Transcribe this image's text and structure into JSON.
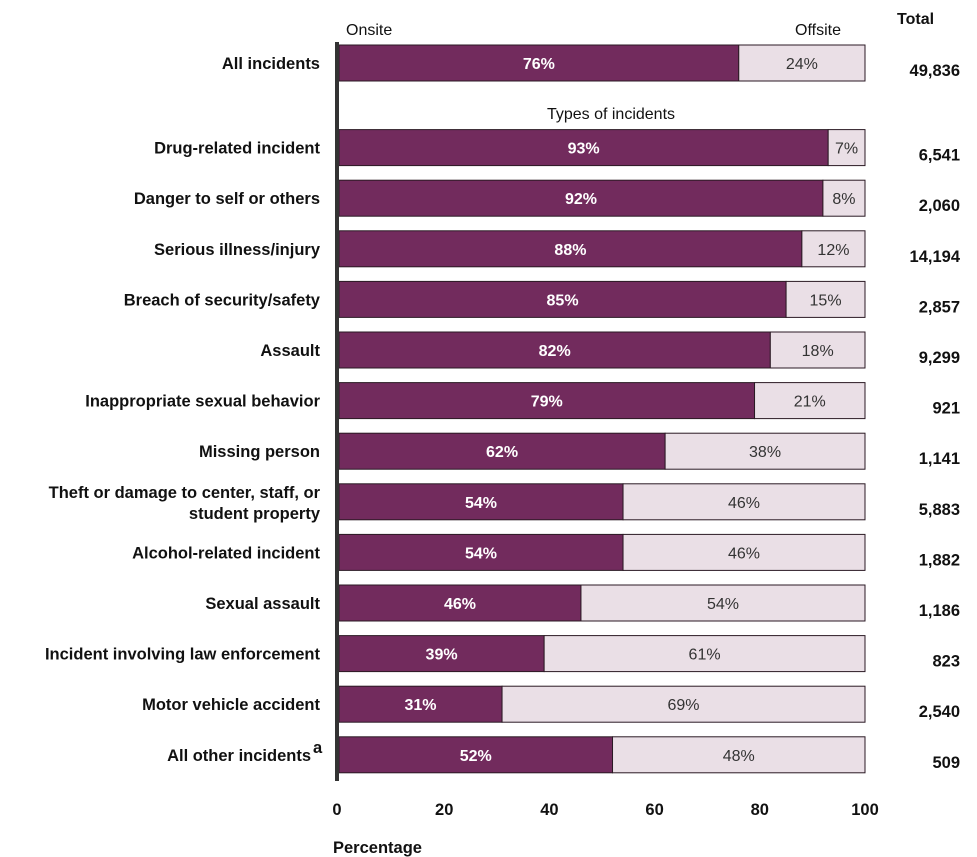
{
  "chart_data": {
    "type": "bar",
    "orientation": "horizontal",
    "stacked": true,
    "xlabel": "Percentage",
    "xlim": [
      0,
      100
    ],
    "xticks": [
      "0",
      "20",
      "40",
      "60",
      "80",
      "100"
    ],
    "onsite_header": "Onsite",
    "offsite_header": "Offsite",
    "total_header": "Total",
    "group_header": "Types of incidents",
    "colors": {
      "onsite": "#722b5d",
      "offsite": "#eadfe6",
      "axis": "#333333"
    },
    "categories": [
      {
        "label": [
          "All incidents"
        ],
        "onsite": 76,
        "offsite": 24,
        "onsite_text": "76%",
        "offsite_text": "24%",
        "total": "49,836"
      },
      {
        "label": [
          "Drug-related incident"
        ],
        "onsite": 93,
        "offsite": 7,
        "onsite_text": "93%",
        "offsite_text": "7%",
        "total": "6,541"
      },
      {
        "label": [
          "Danger to self or others"
        ],
        "onsite": 92,
        "offsite": 8,
        "onsite_text": "92%",
        "offsite_text": "8%",
        "total": "2,060"
      },
      {
        "label": [
          "Serious illness/injury"
        ],
        "onsite": 88,
        "offsite": 12,
        "onsite_text": "88%",
        "offsite_text": "12%",
        "total": "14,194"
      },
      {
        "label": [
          "Breach of security/safety"
        ],
        "onsite": 85,
        "offsite": 15,
        "onsite_text": "85%",
        "offsite_text": "15%",
        "total": "2,857"
      },
      {
        "label": [
          "Assault"
        ],
        "onsite": 82,
        "offsite": 18,
        "onsite_text": "82%",
        "offsite_text": "18%",
        "total": "9,299"
      },
      {
        "label": [
          "Inappropriate sexual behavior"
        ],
        "onsite": 79,
        "offsite": 21,
        "onsite_text": "79%",
        "offsite_text": "21%",
        "total": "921"
      },
      {
        "label": [
          "Missing person"
        ],
        "onsite": 62,
        "offsite": 38,
        "onsite_text": "62%",
        "offsite_text": "38%",
        "total": "1,141"
      },
      {
        "label": [
          "Theft or damage to center, staff, or",
          "student property"
        ],
        "onsite": 54,
        "offsite": 46,
        "onsite_text": "54%",
        "offsite_text": "46%",
        "total": "5,883"
      },
      {
        "label": [
          "Alcohol-related incident"
        ],
        "onsite": 54,
        "offsite": 46,
        "onsite_text": "54%",
        "offsite_text": "46%",
        "total": "1,882"
      },
      {
        "label": [
          "Sexual assault"
        ],
        "onsite": 46,
        "offsite": 54,
        "onsite_text": "46%",
        "offsite_text": "54%",
        "total": "1,186"
      },
      {
        "label": [
          "Incident involving law enforcement"
        ],
        "onsite": 39,
        "offsite": 61,
        "onsite_text": "39%",
        "offsite_text": "61%",
        "total": "823"
      },
      {
        "label": [
          "Motor vehicle accident"
        ],
        "onsite": 31,
        "offsite": 69,
        "onsite_text": "31%",
        "offsite_text": "69%",
        "total": "2,540"
      },
      {
        "label": [
          "All other incidents"
        ],
        "label_superscript": "a",
        "onsite": 52,
        "offsite": 48,
        "onsite_text": "52%",
        "offsite_text": "48%",
        "total": "509"
      }
    ]
  }
}
